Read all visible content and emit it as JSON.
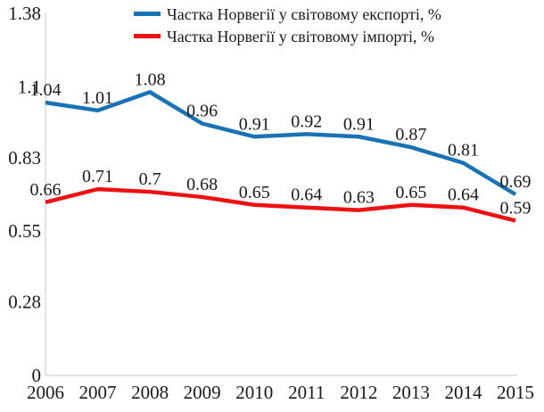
{
  "chart_data": {
    "type": "line",
    "categories": [
      "2006",
      "2007",
      "2008",
      "2009",
      "2010",
      "2011",
      "2012",
      "2013",
      "2014",
      "2015"
    ],
    "series": [
      {
        "name": "Частка Норвегії у світовому експорті, %",
        "color": "#1872b6",
        "values": [
          1.04,
          1.01,
          1.08,
          0.96,
          0.91,
          0.92,
          0.91,
          0.87,
          0.81,
          0.69
        ]
      },
      {
        "name": "Частка Норвегії у світовому імпорті, %",
        "color": "#ee1111",
        "values": [
          0.66,
          0.71,
          0.7,
          0.68,
          0.65,
          0.64,
          0.63,
          0.65,
          0.64,
          0.59
        ]
      }
    ],
    "ylim": [
      0,
      1.38
    ],
    "yticks": [
      "0",
      "0.28",
      "0.55",
      "0.83",
      "1.1",
      "1.38"
    ],
    "grid": false,
    "legend_position": "top",
    "data_labels": true
  },
  "colors": {
    "axis": "#c8c8c8",
    "text": "#1a1a1a"
  }
}
